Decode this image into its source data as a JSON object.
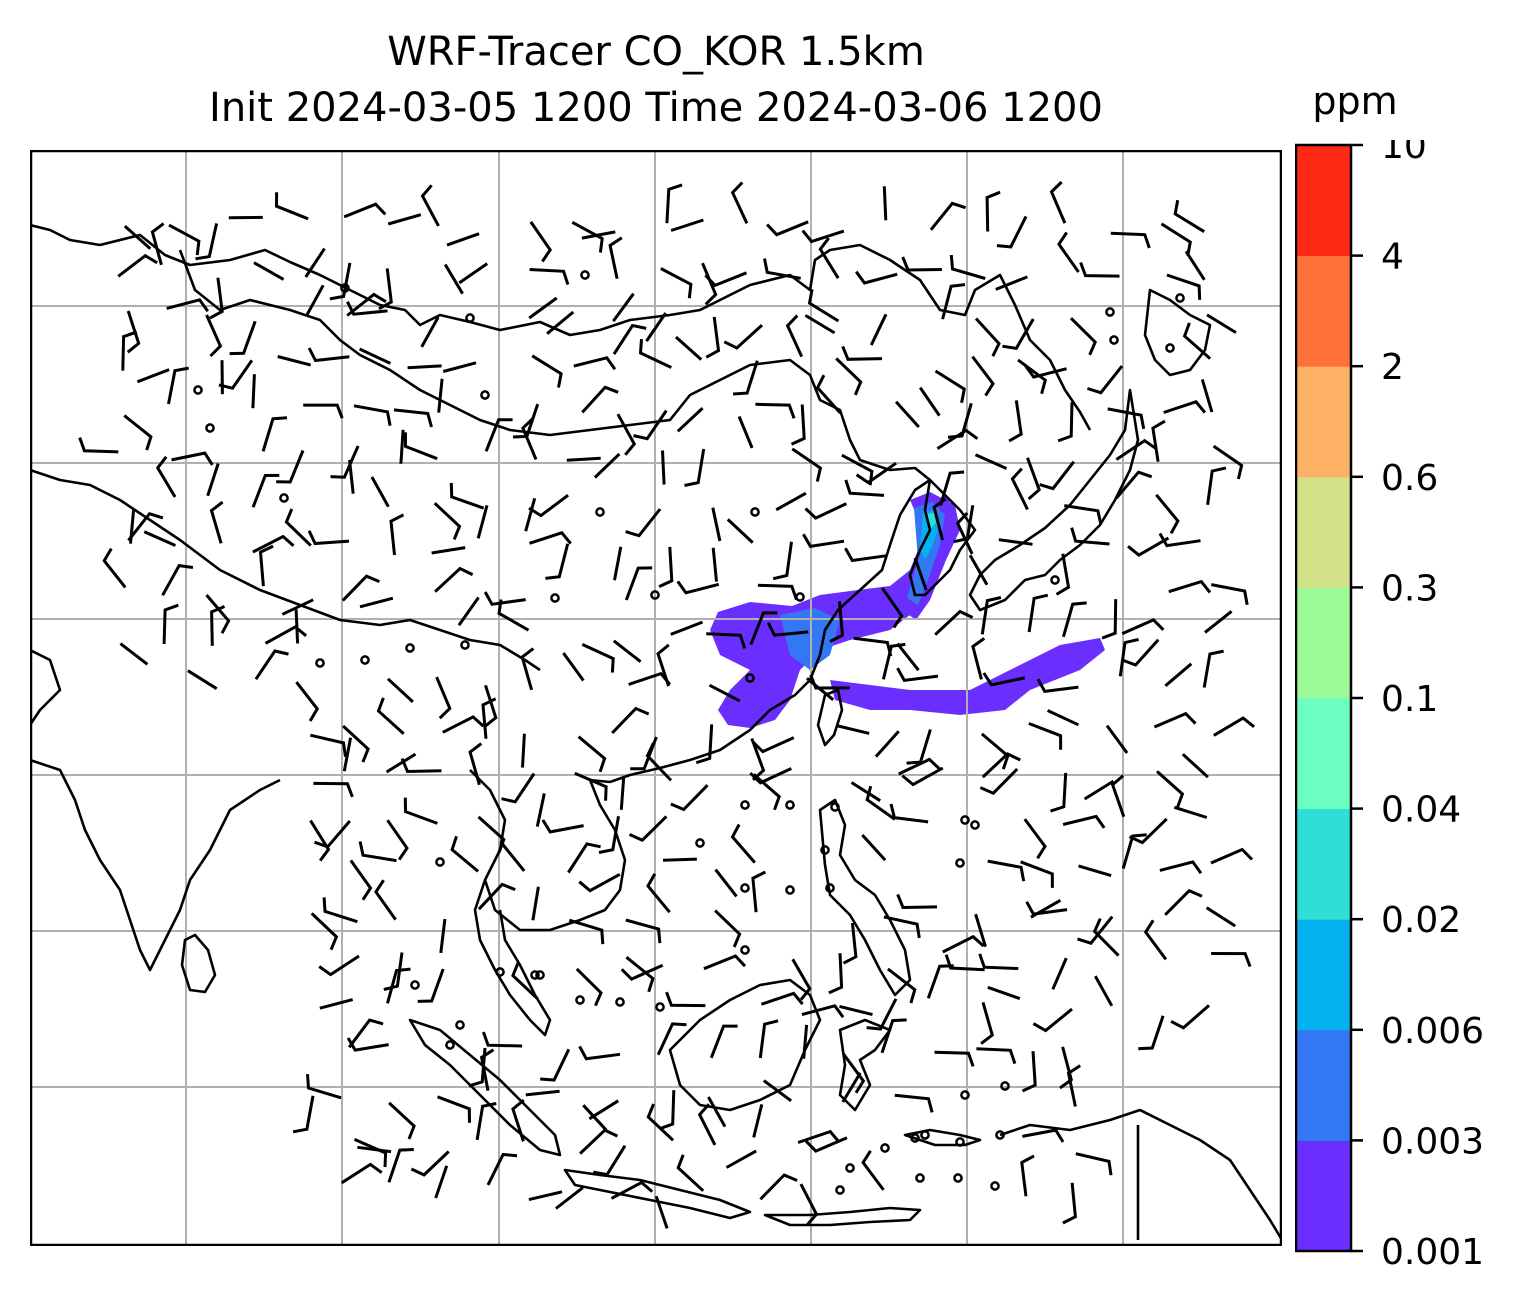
{
  "title": {
    "line1": "WRF-Tracer CO_KOR 1.5km",
    "line2": "Init 2024-03-05 1200 Time 2024-03-06 1200"
  },
  "colorbar": {
    "unit": "ppm",
    "levels": [
      "0.001",
      "0.003",
      "0.006",
      "0.02",
      "0.04",
      "0.1",
      "0.3",
      "0.6",
      "2",
      "4",
      "10"
    ],
    "colors": [
      "#6a2eff",
      "#3377f3",
      "#05b1ee",
      "#2fdfd6",
      "#6affc0",
      "#9cf998",
      "#d1e188",
      "#fdb164",
      "#fe7139",
      "#ff2a16"
    ]
  },
  "map": {
    "gridlines": true,
    "coastline_color": "#000000",
    "gridline_color": "#b0b0b0"
  }
}
